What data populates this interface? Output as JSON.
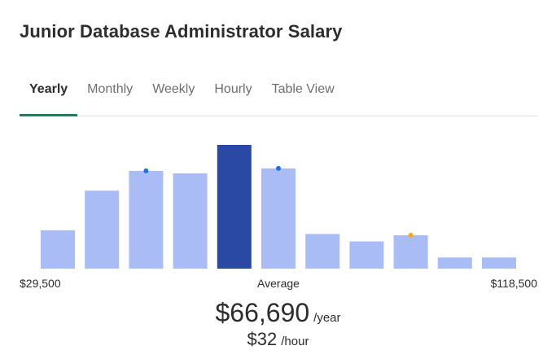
{
  "title": "Junior Database Administrator Salary",
  "tabs": [
    {
      "label": "Yearly",
      "active": true
    },
    {
      "label": "Monthly",
      "active": false
    },
    {
      "label": "Weekly",
      "active": false
    },
    {
      "label": "Hourly",
      "active": false
    },
    {
      "label": "Table View",
      "active": false
    }
  ],
  "chart_data": {
    "type": "bar",
    "values": [
      0.31,
      0.63,
      0.79,
      0.77,
      1.0,
      0.81,
      0.28,
      0.22,
      0.27,
      0.09,
      0.09
    ],
    "highlight_index": 4,
    "markers": [
      {
        "bar": 2,
        "color": "#1a73e8"
      },
      {
        "bar": 5,
        "color": "#1a73e8"
      },
      {
        "bar": 8,
        "color": "#f5a623"
      }
    ],
    "colors": {
      "bar": "#a9bcf5",
      "highlight": "#2a49a5"
    },
    "min_label": "$29,500",
    "average_label": "Average",
    "max_label": "$118,500"
  },
  "salary": {
    "yearly": "$66,690",
    "yearly_unit": "/year",
    "hourly": "$32",
    "hourly_unit": "/hour"
  }
}
